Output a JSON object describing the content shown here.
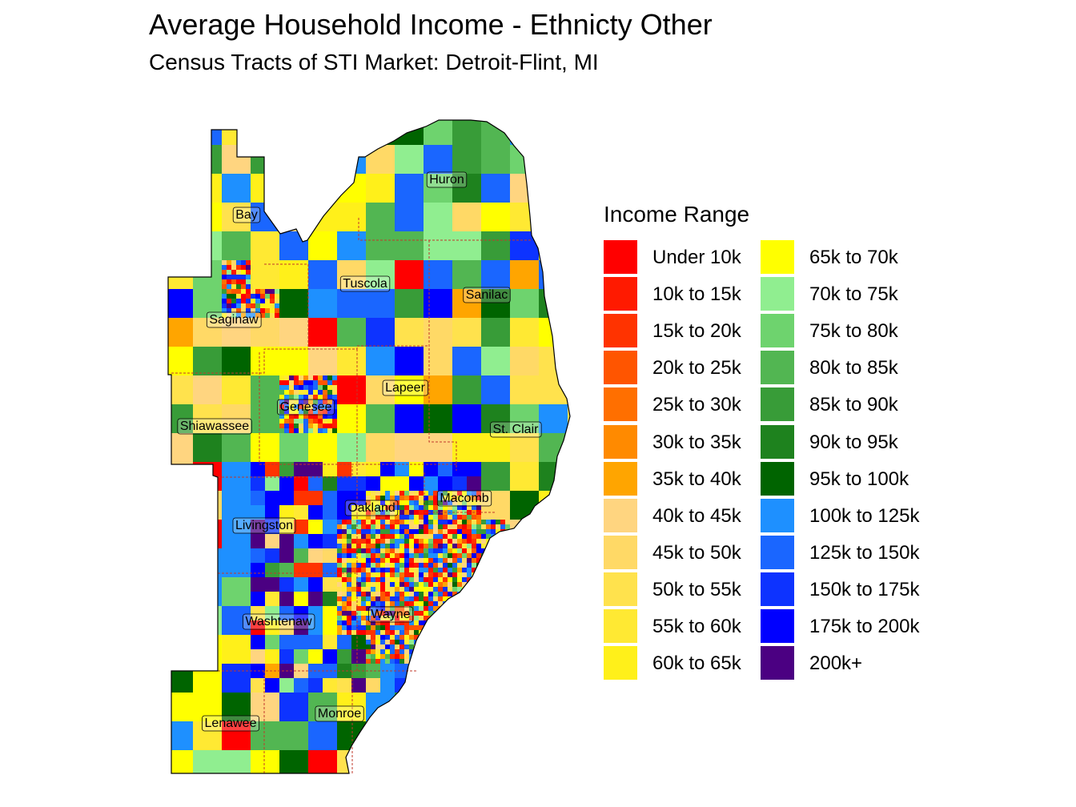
{
  "title": "Average Household Income - Ethnicty Other",
  "subtitle": "Census Tracts of STI Market: Detroit-Flint, MI",
  "legend": {
    "title": "Income Range",
    "items": [
      {
        "label": "Under 10k",
        "color": "#FF0000"
      },
      {
        "label": "10k to 15k",
        "color": "#FF1A00"
      },
      {
        "label": "15k to 20k",
        "color": "#FF3300"
      },
      {
        "label": "20k to 25k",
        "color": "#FF5500"
      },
      {
        "label": "25k to 30k",
        "color": "#FF6F00"
      },
      {
        "label": "30k to 35k",
        "color": "#FF8A00"
      },
      {
        "label": "35k to 40k",
        "color": "#FFA500"
      },
      {
        "label": "40k to 45k",
        "color": "#FFD580"
      },
      {
        "label": "45k to 50k",
        "color": "#FFD966"
      },
      {
        "label": "50k to 55k",
        "color": "#FFE24D"
      },
      {
        "label": "55k to 60k",
        "color": "#FFE933"
      },
      {
        "label": "60k to 65k",
        "color": "#FFF01A"
      },
      {
        "label": "65k to 70k",
        "color": "#FFFF00"
      },
      {
        "label": "70k to 75k",
        "color": "#90EE90"
      },
      {
        "label": "75k to 80k",
        "color": "#6ED36E"
      },
      {
        "label": "80k to 85k",
        "color": "#52B652"
      },
      {
        "label": "85k to 90k",
        "color": "#389C38"
      },
      {
        "label": "90k to 95k",
        "color": "#1E821E"
      },
      {
        "label": "95k to 100k",
        "color": "#006400"
      },
      {
        "label": "100k to 125k",
        "color": "#1E90FF"
      },
      {
        "label": "125k to 150k",
        "color": "#1A66FF"
      },
      {
        "label": "150k to 175k",
        "color": "#0D33FF"
      },
      {
        "label": "175k to 200k",
        "color": "#0000FF"
      },
      {
        "label": "200k+",
        "color": "#4B0082"
      }
    ]
  },
  "counties": [
    {
      "name": "Huron"
    },
    {
      "name": "Bay"
    },
    {
      "name": "Tuscola"
    },
    {
      "name": "Sanilac"
    },
    {
      "name": "Saginaw"
    },
    {
      "name": "Lapeer"
    },
    {
      "name": "Genesee"
    },
    {
      "name": "St. Clair"
    },
    {
      "name": "Shiawassee"
    },
    {
      "name": "Macomb"
    },
    {
      "name": "Oakland"
    },
    {
      "name": "Livingston"
    },
    {
      "name": "Washtenaw"
    },
    {
      "name": "Wayne"
    },
    {
      "name": "Monroe"
    },
    {
      "name": "Lenawee"
    }
  ]
}
